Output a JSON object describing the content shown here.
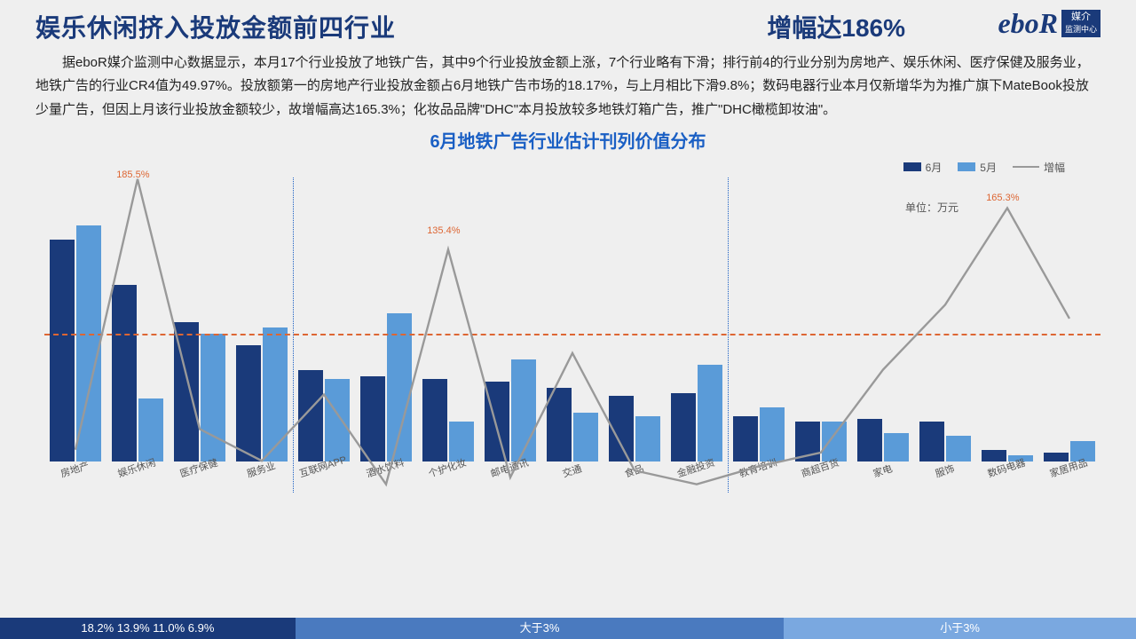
{
  "header": {
    "title_left": "娱乐休闲挤入投放金额前四行业",
    "title_right": "增幅达186%",
    "logo_text": "eboR",
    "logo_badge_line1": "媒介",
    "logo_badge_line2": "监测中心"
  },
  "description": "据eboR媒介监测中心数据显示，本月17个行业投放了地铁广告，其中9个行业投放金额上涨，7个行业略有下滑；排行前4的行业分别为房地产、娱乐休闲、医疗保健及服务业，地铁广告的行业CR4值为49.97%。投放额第一的房地产行业投放金额占6月地铁广告市场的18.17%，与上月相比下滑9.8%；数码电器行业本月仅新增华为为推广旗下MateBook投放少量广告，但因上月该行业投放金额较少，故增幅高达165.3%；化妆品品牌\"DHC\"本月投放较多地铁灯箱广告，推广\"DHC橄榄卸妆油\"。",
  "chart": {
    "title": "6月地铁广告行业估计刊列价值分布",
    "unit": "单位：万元",
    "legend": {
      "jun": "6月",
      "may": "5月",
      "growth": "增幅"
    },
    "colors": {
      "jun": "#1a3a7a",
      "may": "#5a9bd8",
      "line": "#999",
      "zero_line": "#d63",
      "bg": "#efefef",
      "sep": "#1a5fc4"
    },
    "bar_max": 100,
    "line_min": -60,
    "line_max": 200,
    "categories": [
      {
        "label": "房地产",
        "jun": 78,
        "may": 83,
        "growth": -10
      },
      {
        "label": "娱乐休闲",
        "jun": 62,
        "may": 22,
        "growth": 186,
        "annot": "185.5%"
      },
      {
        "label": "医疗保健",
        "jun": 49,
        "may": 45,
        "growth": 5
      },
      {
        "label": "服务业",
        "jun": 41,
        "may": 47,
        "growth": -18
      },
      {
        "label": "互联网APP",
        "jun": 32,
        "may": 29,
        "growth": 30
      },
      {
        "label": "酒水饮料",
        "jun": 30,
        "may": 52,
        "growth": -35
      },
      {
        "label": "个护化妆",
        "jun": 29,
        "may": 14,
        "growth": 135,
        "annot": "135.4%"
      },
      {
        "label": "邮电通讯",
        "jun": 28,
        "may": 36,
        "growth": -30
      },
      {
        "label": "交通",
        "jun": 26,
        "may": 17,
        "growth": 60
      },
      {
        "label": "食品",
        "jun": 23,
        "may": 16,
        "growth": -25
      },
      {
        "label": "金融投资",
        "jun": 24,
        "may": 34,
        "growth": -35
      },
      {
        "label": "教育培训",
        "jun": 16,
        "may": 19,
        "growth": -22
      },
      {
        "label": "商超百货",
        "jun": 14,
        "may": 14,
        "growth": -12
      },
      {
        "label": "家电",
        "jun": 15,
        "may": 10,
        "growth": 48
      },
      {
        "label": "服饰",
        "jun": 14,
        "may": 9,
        "growth": 95
      },
      {
        "label": "数码电器",
        "jun": 4,
        "may": 2,
        "growth": 165,
        "annot": "165.3%"
      },
      {
        "label": "家居用品",
        "jun": 3,
        "may": 7,
        "growth": 85
      }
    ],
    "separators_after": [
      3,
      10
    ],
    "annot_color": "#d63"
  },
  "bottom_segments": [
    {
      "label": "18.2%   13.9%    11.0%   6.9%",
      "width_pct": 26,
      "bg": "#1a3a7a"
    },
    {
      "label": "大于3%",
      "width_pct": 43,
      "bg": "#4a7abf"
    },
    {
      "label": "小于3%",
      "width_pct": 31,
      "bg": "#7aa8e0"
    }
  ]
}
